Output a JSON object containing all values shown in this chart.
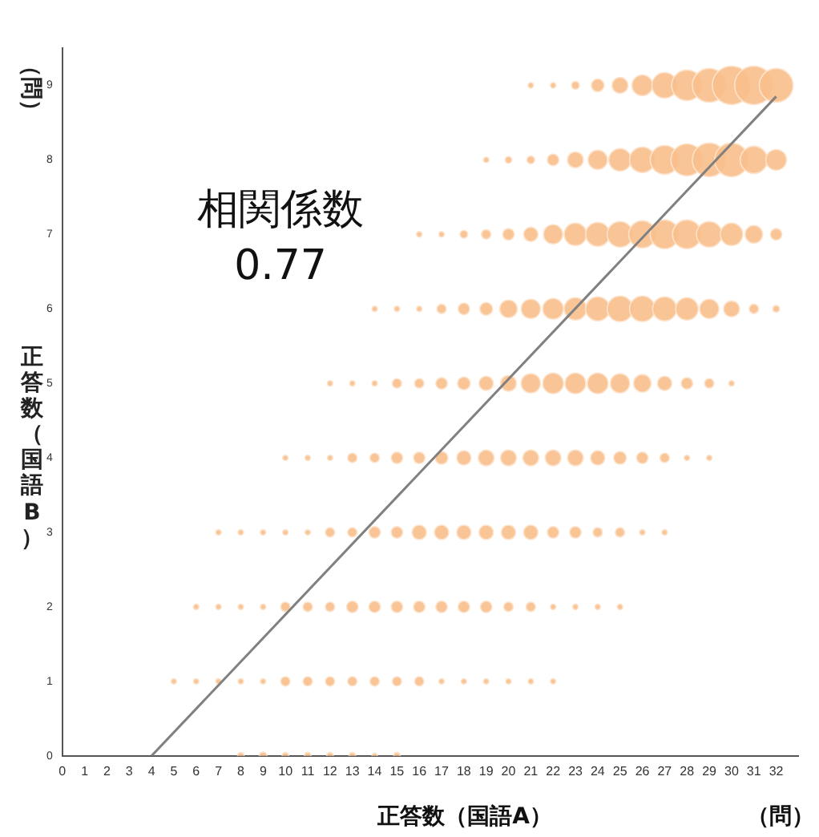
{
  "chart_data": {
    "type": "bubble",
    "xlabel": "正答数（国語A）",
    "ylabel": "正答数（国語B）",
    "annotations": [
      "相関係数",
      "0.77",
      "（問）",
      "（問）"
    ],
    "xlim": [
      0,
      33
    ],
    "xticks": [
      0,
      1,
      2,
      3,
      4,
      5,
      6,
      7,
      8,
      9,
      10,
      11,
      12,
      13,
      14,
      15,
      16,
      17,
      18,
      19,
      20,
      21,
      22,
      23,
      24,
      25,
      26,
      27,
      28,
      29,
      30,
      31,
      32
    ],
    "ylim": [
      0,
      9.5
    ],
    "yticks": [
      0,
      1,
      2,
      3,
      4,
      5,
      6,
      7,
      8,
      9
    ],
    "grid": false,
    "legend": false,
    "series": [
      {
        "type": "bubble",
        "color": "#f8bf8c",
        "x": [
          21,
          22,
          23,
          24,
          25,
          26,
          27,
          28,
          29,
          30,
          31,
          32,
          19,
          20,
          21,
          22,
          23,
          24,
          25,
          26,
          27,
          28,
          29,
          30,
          31,
          32,
          16,
          17,
          18,
          19,
          20,
          21,
          22,
          23,
          24,
          25,
          26,
          27,
          28,
          29,
          30,
          31,
          32,
          14,
          15,
          16,
          17,
          18,
          19,
          20,
          21,
          22,
          23,
          24,
          25,
          26,
          27,
          28,
          29,
          30,
          31,
          32,
          12,
          13,
          14,
          15,
          16,
          17,
          18,
          19,
          20,
          21,
          22,
          23,
          24,
          25,
          26,
          27,
          28,
          29,
          30,
          10,
          11,
          12,
          13,
          14,
          15,
          16,
          17,
          18,
          19,
          20,
          21,
          22,
          23,
          24,
          25,
          26,
          27,
          28,
          29,
          7,
          8,
          9,
          10,
          11,
          12,
          13,
          14,
          15,
          16,
          17,
          18,
          19,
          20,
          21,
          22,
          23,
          24,
          25,
          26,
          27,
          6,
          7,
          8,
          9,
          10,
          11,
          12,
          13,
          14,
          15,
          16,
          17,
          18,
          19,
          20,
          21,
          22,
          23,
          24,
          25,
          5,
          6,
          7,
          8,
          9,
          10,
          11,
          12,
          13,
          14,
          15,
          16,
          17,
          18,
          19,
          20,
          21,
          22,
          8,
          9,
          10,
          11,
          12,
          13,
          14,
          15
        ],
        "values": [
          9,
          9,
          9,
          9,
          9,
          9,
          9,
          9,
          9,
          9,
          9,
          9,
          8,
          8,
          8,
          8,
          8,
          8,
          8,
          8,
          8,
          8,
          8,
          8,
          8,
          8,
          7,
          7,
          7,
          7,
          7,
          7,
          7,
          7,
          7,
          7,
          7,
          7,
          7,
          7,
          7,
          7,
          7,
          6,
          6,
          6,
          6,
          6,
          6,
          6,
          6,
          6,
          6,
          6,
          6,
          6,
          6,
          6,
          6,
          6,
          6,
          6,
          5,
          5,
          5,
          5,
          5,
          5,
          5,
          5,
          5,
          5,
          5,
          5,
          5,
          5,
          5,
          5,
          5,
          5,
          5,
          4,
          4,
          4,
          4,
          4,
          4,
          4,
          4,
          4,
          4,
          4,
          4,
          4,
          4,
          4,
          4,
          4,
          4,
          4,
          4,
          3,
          3,
          3,
          3,
          3,
          3,
          3,
          3,
          3,
          3,
          3,
          3,
          3,
          3,
          3,
          3,
          3,
          3,
          3,
          3,
          3,
          2,
          2,
          2,
          2,
          2,
          2,
          2,
          2,
          2,
          2,
          2,
          2,
          2,
          2,
          2,
          2,
          2,
          2,
          2,
          2,
          1,
          1,
          1,
          1,
          1,
          1,
          1,
          1,
          1,
          1,
          1,
          1,
          1,
          1,
          1,
          1,
          1,
          1,
          0,
          0,
          0,
          0,
          0,
          0,
          0,
          0
        ],
        "sizes": [
          0.02,
          0.02,
          0.04,
          0.11,
          0.17,
          0.29,
          0.44,
          0.63,
          0.77,
          1,
          1,
          0.77,
          0.02,
          0.03,
          0.04,
          0.09,
          0.17,
          0.25,
          0.34,
          0.44,
          0.56,
          0.69,
          0.77,
          0.77,
          0.5,
          0.29,
          0.02,
          0.02,
          0.04,
          0.06,
          0.09,
          0.14,
          0.25,
          0.34,
          0.39,
          0.44,
          0.5,
          0.56,
          0.56,
          0.44,
          0.34,
          0.21,
          0.09,
          0.02,
          0.02,
          0.02,
          0.06,
          0.09,
          0.11,
          0.21,
          0.25,
          0.29,
          0.34,
          0.39,
          0.44,
          0.44,
          0.39,
          0.34,
          0.25,
          0.17,
          0.06,
          0.03,
          0.02,
          0.02,
          0.02,
          0.06,
          0.06,
          0.09,
          0.11,
          0.14,
          0.17,
          0.25,
          0.29,
          0.29,
          0.29,
          0.25,
          0.21,
          0.14,
          0.09,
          0.06,
          0.02,
          0.02,
          0.02,
          0.02,
          0.06,
          0.06,
          0.09,
          0.09,
          0.11,
          0.14,
          0.17,
          0.17,
          0.17,
          0.17,
          0.17,
          0.14,
          0.11,
          0.09,
          0.06,
          0.02,
          0.02,
          0.02,
          0.02,
          0.02,
          0.02,
          0.02,
          0.06,
          0.06,
          0.09,
          0.09,
          0.14,
          0.14,
          0.14,
          0.14,
          0.14,
          0.14,
          0.09,
          0.09,
          0.06,
          0.06,
          0.02,
          0.02,
          0.02,
          0.02,
          0.02,
          0.02,
          0.06,
          0.06,
          0.06,
          0.09,
          0.09,
          0.09,
          0.09,
          0.09,
          0.09,
          0.09,
          0.06,
          0.06,
          0.02,
          0.02,
          0.02,
          0.02,
          0.02,
          0.02,
          0.02,
          0.02,
          0.02,
          0.06,
          0.06,
          0.06,
          0.06,
          0.06,
          0.06,
          0.06,
          0.02,
          0.02,
          0.02,
          0.02,
          0.02,
          0.02,
          0.03,
          0.04,
          0.03,
          0.03,
          0.03,
          0.03,
          0.02,
          0.03
        ]
      },
      {
        "type": "line",
        "color": "#808080",
        "x": [
          4,
          32
        ],
        "values": [
          0,
          8.85
        ]
      }
    ]
  }
}
